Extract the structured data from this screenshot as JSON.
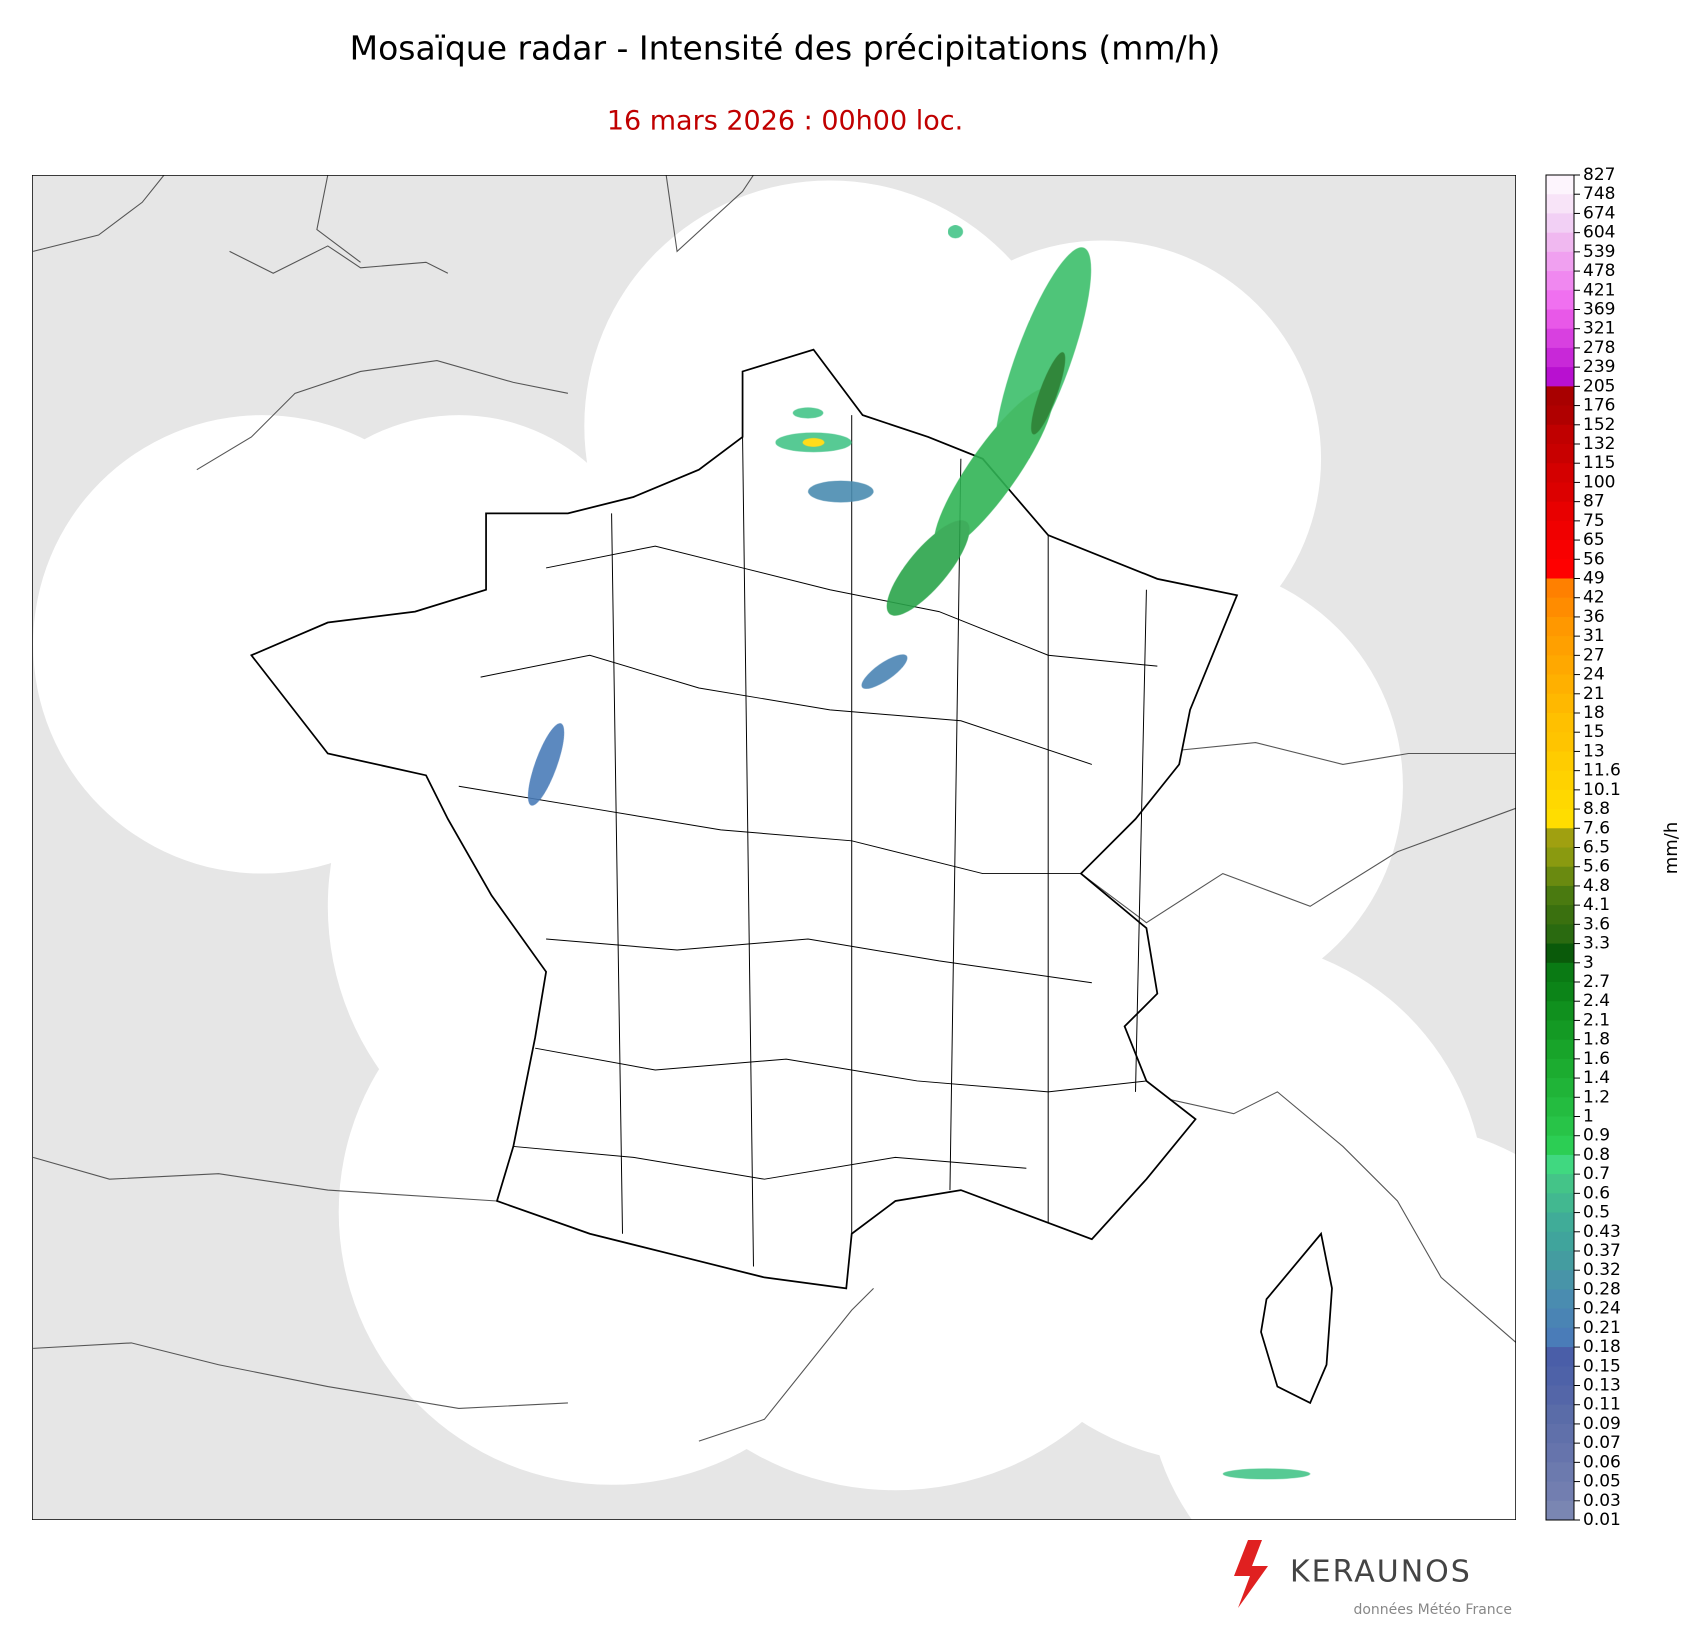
{
  "title": "Mosaïque radar - Intensité des précipitations (mm/h)",
  "subtitle": "16 mars 2026 : 00h00 loc.",
  "colorbar": {
    "label": "mm/h",
    "levels": [
      827,
      748,
      674,
      604,
      539,
      478,
      421,
      369,
      321,
      278,
      239,
      205,
      176,
      152,
      132,
      115,
      100,
      87,
      75,
      65,
      56,
      49,
      42,
      36,
      31,
      27,
      24,
      21,
      18,
      15,
      13,
      11.6,
      10.1,
      8.8,
      7.6,
      6.5,
      5.6,
      4.8,
      4.1,
      3.6,
      3.3,
      3,
      2.7,
      2.4,
      2.1,
      1.8,
      1.6,
      1.4,
      1.2,
      1,
      0.9,
      0.8,
      0.7,
      0.6,
      0.5,
      0.43,
      0.37,
      0.32,
      0.28,
      0.24,
      0.21,
      0.18,
      0.15,
      0.13,
      0.11,
      0.09,
      0.07,
      0.06,
      0.05,
      0.03,
      0.01
    ],
    "colors": [
      "#fdf5fd",
      "#f8e4f8",
      "#f2d0f5",
      "#f0b8f0",
      "#f0a0f0",
      "#f088f0",
      "#f070f0",
      "#e858e8",
      "#d840e0",
      "#c828d8",
      "#b810d0",
      "#a80000",
      "#b00000",
      "#c00000",
      "#c80000",
      "#d40000",
      "#dc0000",
      "#e80000",
      "#f00000",
      "#f80000",
      "#ff0000",
      "#ff8000",
      "#ff8c00",
      "#ff9800",
      "#ffa000",
      "#ffa800",
      "#ffb000",
      "#ffb800",
      "#ffc000",
      "#ffc400",
      "#ffcc00",
      "#ffd200",
      "#ffd800",
      "#ffdd00",
      "#a0a010",
      "#8a9a10",
      "#6a8a10",
      "#4a7a10",
      "#3a700f",
      "#2a6a10",
      "#0a5a0a",
      "#0a7a14",
      "#0c8418",
      "#10901e",
      "#149a24",
      "#18a42a",
      "#1cac30",
      "#20b438",
      "#24bc40",
      "#28c448",
      "#2cce54",
      "#40d880",
      "#44c488",
      "#42b890",
      "#40ac98",
      "#40a49c",
      "#449ca0",
      "#4894a8",
      "#4a8cb0",
      "#4a84b4",
      "#4a7cb8",
      "#4a5ea8",
      "#4e62a8",
      "#5466a8",
      "#5a6ca8",
      "#6070aa",
      "#6674ac",
      "#6c7aae",
      "#727eb0",
      "#7a86b2"
    ]
  },
  "logo": {
    "name": "KERAUNOS",
    "credit": "données Météo France"
  }
}
